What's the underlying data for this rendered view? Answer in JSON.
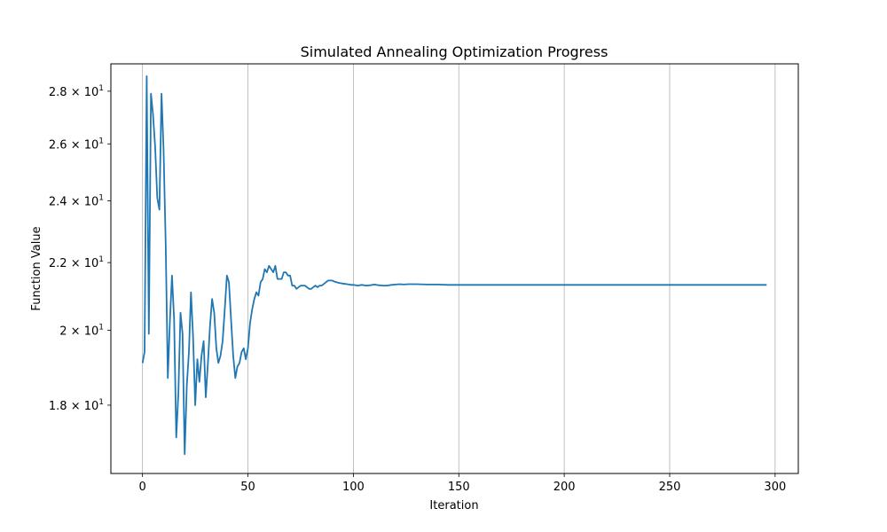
{
  "chart_data": {
    "type": "line",
    "title": "Simulated Annealing Optimization Progress",
    "xlabel": "Iteration",
    "ylabel": "Function Value",
    "yscale": "log",
    "xlim": [
      -15,
      311
    ],
    "ylim": [
      16.35,
      29.1
    ],
    "grid": "vertical",
    "line_color": "#1f77b4",
    "x_ticks": [
      {
        "value": 0,
        "label": "0"
      },
      {
        "value": 50,
        "label": "50"
      },
      {
        "value": 100,
        "label": "100"
      },
      {
        "value": 150,
        "label": "150"
      },
      {
        "value": 200,
        "label": "200"
      },
      {
        "value": 250,
        "label": "250"
      },
      {
        "value": 300,
        "label": "300"
      }
    ],
    "y_ticks": [
      {
        "value": 18,
        "mantissa": "1.8",
        "exp": "1"
      },
      {
        "value": 20,
        "mantissa": "2",
        "exp": "1"
      },
      {
        "value": 22,
        "mantissa": "2.2",
        "exp": "1"
      },
      {
        "value": 24,
        "mantissa": "2.4",
        "exp": "1"
      },
      {
        "value": 26,
        "mantissa": "2.6",
        "exp": "1"
      },
      {
        "value": 28,
        "mantissa": "2.8",
        "exp": "1"
      }
    ],
    "series": [
      {
        "x": [
          0,
          1,
          2,
          3,
          4,
          5,
          6,
          7,
          8,
          9,
          10,
          11,
          12,
          13,
          14,
          15,
          16,
          17,
          18,
          19,
          20,
          21,
          22,
          23,
          24,
          25,
          26,
          27,
          28,
          29,
          30,
          31,
          32,
          33,
          34,
          35,
          36,
          37,
          38,
          39,
          40,
          41,
          42,
          43,
          44,
          45,
          46,
          47,
          48,
          49,
          50,
          51,
          52,
          53,
          54,
          55,
          56,
          57,
          58,
          59,
          60,
          61,
          62,
          63,
          64,
          65,
          66,
          67,
          68,
          69,
          70,
          71,
          72,
          73,
          74,
          75,
          76,
          77,
          78,
          79,
          80,
          81,
          82,
          83,
          84,
          85,
          86,
          87,
          88,
          89,
          90,
          91,
          92,
          93,
          94,
          95,
          96,
          97,
          98,
          99,
          100,
          102,
          104,
          106,
          108,
          110,
          112,
          114,
          116,
          118,
          120,
          122,
          124,
          126,
          128,
          130,
          135,
          140,
          145,
          150,
          160,
          170,
          180,
          190,
          200,
          220,
          240,
          260,
          280,
          296
        ],
        "y": [
          19.1,
          19.4,
          28.6,
          19.9,
          27.9,
          27.1,
          25.9,
          24.1,
          23.7,
          27.9,
          25.8,
          22.6,
          18.7,
          20.3,
          21.6,
          20.3,
          17.2,
          18.3,
          20.5,
          19.9,
          16.8,
          18.5,
          19.4,
          21.1,
          19.8,
          18.0,
          19.2,
          18.6,
          19.3,
          19.7,
          18.2,
          19.1,
          20.1,
          20.9,
          20.5,
          19.5,
          19.1,
          19.3,
          19.7,
          20.6,
          21.6,
          21.4,
          20.3,
          19.3,
          18.7,
          19.0,
          19.1,
          19.4,
          19.5,
          19.2,
          19.5,
          20.2,
          20.6,
          20.9,
          21.1,
          21.0,
          21.4,
          21.5,
          21.8,
          21.7,
          21.9,
          21.8,
          21.7,
          21.9,
          21.5,
          21.5,
          21.5,
          21.7,
          21.7,
          21.6,
          21.6,
          21.3,
          21.3,
          21.2,
          21.25,
          21.3,
          21.3,
          21.3,
          21.25,
          21.2,
          21.2,
          21.25,
          21.3,
          21.25,
          21.3,
          21.3,
          21.35,
          21.4,
          21.45,
          21.45,
          21.45,
          21.42,
          21.4,
          21.38,
          21.37,
          21.36,
          21.35,
          21.34,
          21.33,
          21.32,
          21.32,
          21.3,
          21.32,
          21.3,
          21.31,
          21.33,
          21.31,
          21.3,
          21.3,
          21.32,
          21.33,
          21.34,
          21.33,
          21.34,
          21.34,
          21.34,
          21.33,
          21.33,
          21.32,
          21.32,
          21.32,
          21.32,
          21.32,
          21.32,
          21.32,
          21.32,
          21.32,
          21.32,
          21.32,
          21.32
        ]
      }
    ]
  }
}
